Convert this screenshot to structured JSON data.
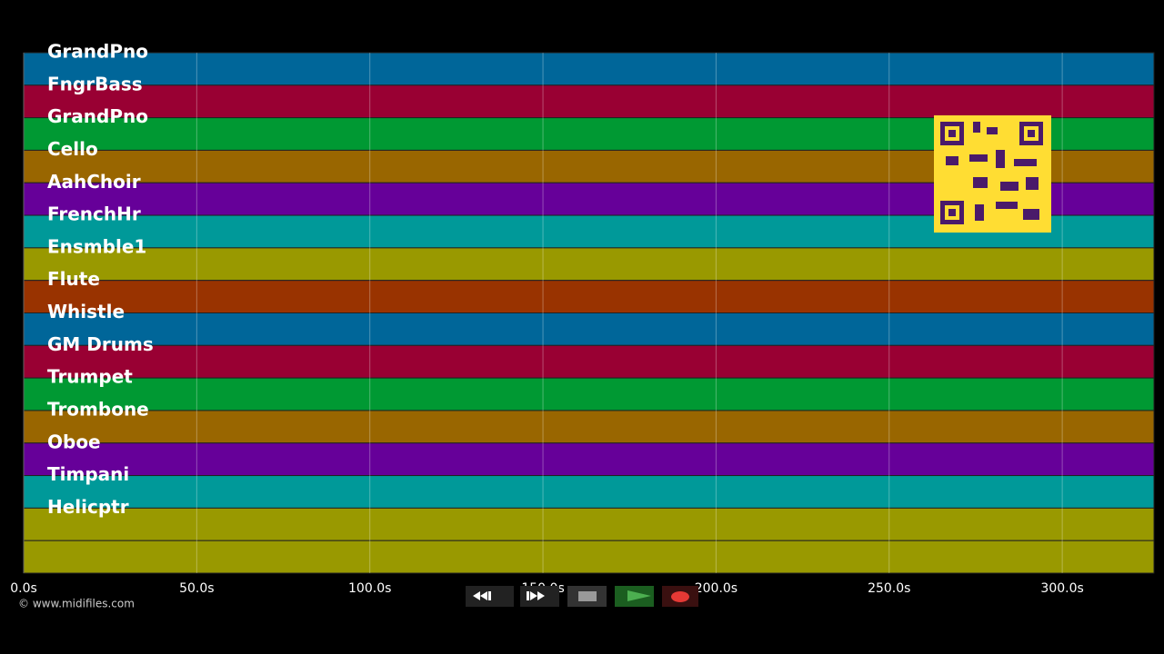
{
  "timeline": {
    "tracks": [
      {
        "name": "GrandPno",
        "color": "#006699"
      },
      {
        "name": "FngrBass",
        "color": "#990033"
      },
      {
        "name": "GrandPno",
        "color": "#009933"
      },
      {
        "name": "Cello",
        "color": "#996600"
      },
      {
        "name": "AahChoir",
        "color": "#660099"
      },
      {
        "name": "FrenchHr",
        "color": "#009999"
      },
      {
        "name": "Ensmble1",
        "color": "#999900"
      },
      {
        "name": "Flute",
        "color": "#993300"
      },
      {
        "name": "Whistle",
        "color": "#006699"
      },
      {
        "name": "GM Drums",
        "color": "#990033"
      },
      {
        "name": "Trumpet",
        "color": "#009933"
      },
      {
        "name": "Trombone",
        "color": "#996600"
      },
      {
        "name": "Oboe",
        "color": "#660099"
      },
      {
        "name": "Timpani",
        "color": "#009999"
      },
      {
        "name": "Helicptr",
        "color": "#999900"
      },
      {
        "name": null,
        "color": "#999900"
      }
    ],
    "xlim": [
      0,
      326.5
    ],
    "xticks": [
      {
        "value": 0,
        "label": "0.0s"
      },
      {
        "value": 50,
        "label": "50.0s"
      },
      {
        "value": 100,
        "label": "100.0s"
      },
      {
        "value": 150,
        "label": "150.0s"
      },
      {
        "value": 200,
        "label": "200.0s"
      },
      {
        "value": 250,
        "label": "250.0s"
      },
      {
        "value": 300,
        "label": "300.0s"
      }
    ],
    "copyright": "© www.midifiles.com"
  }
}
